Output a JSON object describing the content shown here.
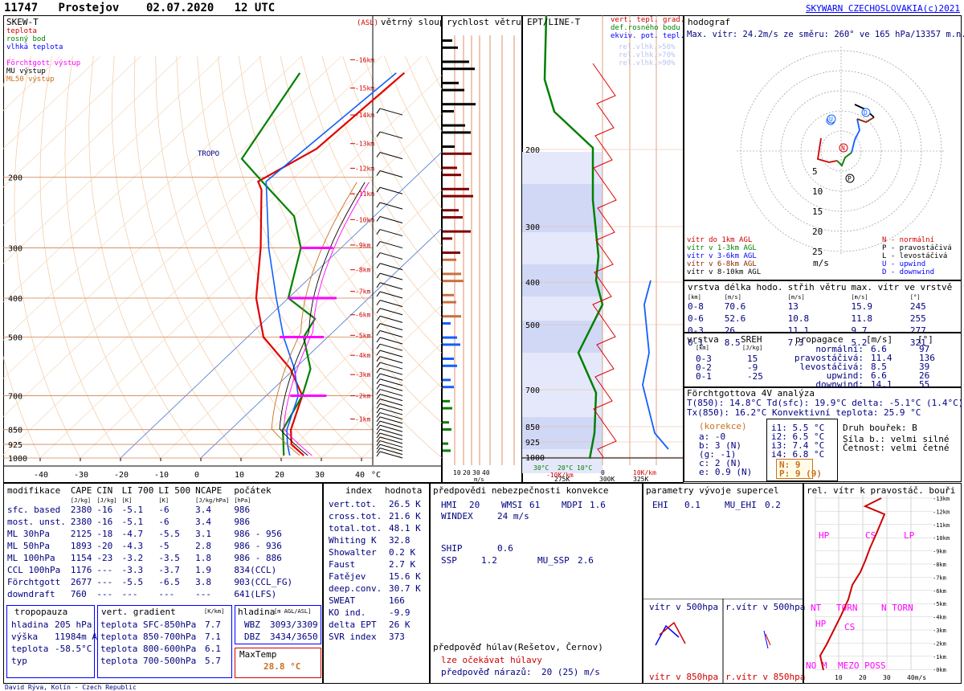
{
  "header": {
    "station": "11747",
    "place": "Prostejov",
    "date": "02.07.2020",
    "time": "12 UTC",
    "copyright": "SKYWARN CZECHOSLOVAKIA(c)2021",
    "footer": "David Rýva, Kolín - Czech Republic"
  },
  "skewt": {
    "title": "SKEW-T",
    "legend": [
      "teplota",
      "rosný bod",
      "vlhká teplota",
      "Förchtgott výstup",
      "MU výstup",
      "ML50 výstup"
    ],
    "legend_colors": [
      "#d00000",
      "#008000",
      "#0000ff",
      "#ff00ff",
      "#000000",
      "#c87020"
    ],
    "asl": "(ASL)",
    "tropo_label": "TROPO",
    "x_ticks": [
      "-40",
      "-30",
      "-20",
      "-10",
      "0",
      "10",
      "20",
      "30",
      "40"
    ],
    "x_unit": "°C",
    "p_labels": [
      "200",
      "300",
      "400",
      "500",
      "700",
      "850",
      "925",
      "1000"
    ],
    "km_labels": [
      "-16km",
      "-15km",
      "-14km",
      "-13km",
      "-12km",
      "-11km",
      "-10km",
      "-9km",
      "-8km",
      "-7km",
      "-6km",
      "-5km",
      "-4km",
      "-3km",
      "-2km",
      "-1km"
    ]
  },
  "wind_column": {
    "title": "větrný sloup"
  },
  "speed_column": {
    "title": "rychlost větru",
    "ticks": [
      "10",
      "20",
      "30",
      "40"
    ],
    "unit": "m/s"
  },
  "ept_column": {
    "title": "EPT/LINE-T",
    "legend": [
      "vert. tepl. grad.",
      "def.rosného bodu",
      "ekviv. pot. tepl."
    ],
    "legend_colors": [
      "#d00000",
      "#008000",
      "#0000ff"
    ],
    "rh_legend": [
      "rel.vlhk.>50%",
      "rel.vlhk.>70%",
      "rel.vlhk.>90%"
    ],
    "bottom_ticks": [
      "30°C",
      "20°C",
      "10°C",
      "0",
      "-10K/km",
      "275K",
      "300K",
      "10K/km",
      "325K"
    ]
  },
  "hodograph": {
    "title": "hodograf",
    "max_wind": "Max. vítr: 24.2m/s ze směru: 260° ve 165 hPa/13357 m.n.m.",
    "rings": [
      "5",
      "10",
      "15",
      "20",
      "25"
    ],
    "unit": "m/s",
    "legend_left": [
      "vítr do 1km AGL",
      "vítr v 1-3km AGL",
      "vítr v 3-6km AGL",
      "vítr v 6-8km AGL",
      "vítr v 8-10km AGL"
    ],
    "legend_left_colors": [
      "#d00000",
      "#008000",
      "#0000ff",
      "#8b2500",
      "#000000"
    ],
    "legend_right": [
      "N - normální",
      "P - pravostáčivá",
      "L - levostáčivá",
      "U - upwind",
      "D - downwind"
    ]
  },
  "layers": {
    "headers": [
      "vrstva",
      "délka hodo.",
      "střih větru",
      "max. vítr ve vrstvě"
    ],
    "units": [
      "[km]",
      "[m/s]",
      "[m/s]",
      "[m/s]",
      "[°]"
    ],
    "rows": [
      [
        "0-8",
        "70.6",
        "13",
        "15.9",
        "245"
      ],
      [
        "0-6",
        "52.6",
        "10.8",
        "11.8",
        "255"
      ],
      [
        "0-3",
        "26",
        "11.1",
        "9.7",
        "277"
      ],
      [
        "0-1",
        "8.5",
        "7.3",
        "5.2",
        "321"
      ]
    ]
  },
  "sreh": {
    "headers": [
      "vrstva",
      "SREH",
      "propagace",
      "[m/s]",
      "[°]"
    ],
    "units": [
      "[km]",
      "[J/kg]"
    ],
    "rows": [
      [
        "0-3",
        "15"
      ],
      [
        "0-2",
        "-9"
      ],
      [
        "0-1",
        "-25"
      ]
    ],
    "prop": [
      [
        "normální:",
        "6.6",
        "97"
      ],
      [
        "pravostáčivá:",
        "11.4",
        "136"
      ],
      [
        "levostáčivá:",
        "8.5",
        "39"
      ],
      [
        "upwind:",
        "6.6",
        "26"
      ],
      [
        "downwind:",
        "14.1",
        "55"
      ]
    ]
  },
  "forchtgott": {
    "title": "Förchtgottova 4V analýza",
    "line1": "T(850): 14.8°C  Td(sfc): 19.9°C  delta: -5.1°C (1.4°C)",
    "line2": "Tx(850): 16.2°C   Konvektivní teplota: 25.9 °C",
    "korekce": "(korekce)",
    "abc": [
      "a: -0",
      "b: 3 (N)",
      "(g: -1)",
      "c: 2 (N)",
      "e: 0.9 (N)"
    ],
    "i": [
      "i1: 5.5 °C",
      "i2: 6.5 °C",
      "i3: 7.4 °C",
      "i4: 6.8 °C"
    ],
    "np": [
      "N: 9",
      "P: 9 (9)"
    ],
    "storm": [
      "Druh bouřek: B",
      "Síla b.: velmi silné",
      "Četnost: velmi četné"
    ]
  },
  "modification": {
    "headers": [
      "modifikace",
      "CAPE",
      "CIN",
      "LI 700",
      "LI 500",
      "NCAPE",
      "počátek"
    ],
    "units": [
      "",
      "[J/kg]",
      "[J/kg]",
      "[K]",
      "[K]",
      "[J/kg/hPa]",
      "[hPa]"
    ],
    "rows": [
      [
        "sfc. based",
        "2380",
        "-16",
        "-5.1",
        "-6",
        "3.4",
        "986"
      ],
      [
        "most. unst.",
        "2380",
        "-16",
        "-5.1",
        "-6",
        "3.4",
        "986"
      ],
      [
        "ML 30hPa",
        "2125",
        "-18",
        "-4.7",
        "-5.5",
        "3.1",
        "986 - 956"
      ],
      [
        "ML 50hPa",
        "1893",
        "-20",
        "-4.3",
        "-5",
        "2.8",
        "986 - 936"
      ],
      [
        "ML 100hPa",
        "1154",
        "-23",
        "-3.2",
        "-3.5",
        "1.8",
        "986 - 886"
      ],
      [
        "CCL 100hPa",
        "1176",
        "---",
        "-3.3",
        "-3.7",
        "1.9",
        "834(CCL)"
      ],
      [
        "Förchtgott",
        "2677",
        "---",
        "-5.5",
        "-6.5",
        "3.8",
        "903(CCL_FG)"
      ],
      [
        "downdraft",
        "760",
        "---",
        "---",
        "---",
        "---",
        "641(LFS)"
      ]
    ]
  },
  "tropopause": {
    "title": "tropopauza",
    "rows": [
      [
        "hladina",
        "205 hPa"
      ],
      [
        "výška",
        "11984m ASL"
      ],
      [
        "teplota",
        "-58.5°C"
      ],
      [
        "typ",
        ""
      ]
    ]
  },
  "gradient": {
    "title": "vert. gradient",
    "unit": "[K/km]",
    "rows": [
      [
        "teplota SFC-850hPa",
        "7.7"
      ],
      [
        "teplota 850-700hPa",
        "7.1"
      ],
      [
        "teplota 800-600hPa",
        "6.1"
      ],
      [
        "teplota 700-500hPa",
        "5.7"
      ]
    ]
  },
  "level": {
    "title": "hladina",
    "unit": "[m AGL/ASL]",
    "rows": [
      [
        "WBZ",
        "3093/3309"
      ],
      [
        "DBZ",
        "3434/3650"
      ]
    ]
  },
  "maxtemp": {
    "title": "MaxTemp",
    "value": "28.8 °C"
  },
  "indices": {
    "headers": [
      "index",
      "hodnota"
    ],
    "rows": [
      [
        "vert.tot.",
        "26.5 K"
      ],
      [
        "cross.tot.",
        "21.6 K"
      ],
      [
        "total.tot.",
        "48.1 K"
      ],
      [
        "Whiting K",
        "32.8"
      ],
      [
        "Showalter",
        "0.2 K"
      ],
      [
        "Faust",
        "2.7 K"
      ],
      [
        "Fatějev",
        "15.6 K"
      ],
      [
        "deep.conv.",
        "30.7 K"
      ],
      [
        "SWEAT",
        "166"
      ],
      [
        "KO ind.",
        "-9.9"
      ],
      [
        "delta EPT",
        "26 K"
      ],
      [
        "SVR index",
        "373"
      ]
    ]
  },
  "forecast": {
    "title": "předpovědi nebezpečnosti konvekce",
    "hmi": "HMI",
    "hmi_v": "20",
    "wmsi": "WMSI",
    "wmsi_v": "61",
    "mdpi": "MDPI",
    "mdpi_v": "1.6",
    "windex": "WINDEX",
    "windex_v": "24 m/s",
    "ship": "SHIP",
    "ship_v": "0.6",
    "ssp": "SSP",
    "ssp_v": "1.2",
    "mussp": "MU_SSP",
    "mussp_v": "2.6",
    "hail_title": "předpověď húlav(Rešetov, Černov)",
    "hail_line": "lze očekávat húlavy",
    "gust_label": "předpověď nárazů:",
    "gust_value": "20 (25) m/s"
  },
  "supercell": {
    "title": "parametry vývoje supercel",
    "ehi": "EHI",
    "ehi_v": "0.1",
    "muehi": "MU_EHI",
    "muehi_v": "0.2",
    "w500": "vítr v 500hpa",
    "rw500": "r.vítr v 500hpa",
    "w850": "vítr v 850hpa",
    "rw850": "r.vítr v 850hpa"
  },
  "relwind": {
    "title": "rel. vítr k pravostáč. bouři",
    "km": [
      "-13km",
      "-12km",
      "-11km",
      "-10km",
      "-9km",
      "-8km",
      "-7km",
      "-6km",
      "-5km",
      "-4km",
      "-3km",
      "-2km",
      "-1km",
      "-0km"
    ],
    "x_ticks": [
      "10",
      "20",
      "30",
      "40m/s"
    ],
    "labels": [
      "HP",
      "CS",
      "LP",
      "NT",
      "TORN",
      "N TORN",
      "HP",
      "CS",
      "NO M",
      "MEZO POSS"
    ]
  },
  "chart_data": {
    "type": "line",
    "title": "SKEW-T",
    "xlabel": "°C",
    "ylabel": "",
    "xlim": [
      -40,
      40
    ],
    "ylim": [
      1000,
      100
    ],
    "series": [
      {
        "name": "teplota",
        "x": [
          25,
          19,
          15,
          9,
          -1,
          -16,
          -28,
          -40,
          -55,
          -58,
          -52,
          -50
        ],
        "y": [
          986,
          925,
          850,
          700,
          600,
          500,
          400,
          300,
          215,
          205,
          170,
          110
        ]
      },
      {
        "name": "rosný bod",
        "x": [
          20,
          17,
          13,
          9,
          4,
          -6,
          -8,
          -20,
          -30,
          -40,
          -57,
          -68,
          -76
        ],
        "y": [
          986,
          925,
          850,
          700,
          600,
          500,
          450,
          400,
          300,
          250,
          205,
          180,
          110
        ]
      },
      {
        "name": "vlhká teplota",
        "x": [
          21.5,
          18,
          14,
          8,
          0,
          -11,
          -23,
          -38,
          -56,
          -52
        ],
        "y": [
          986,
          925,
          850,
          700,
          600,
          500,
          400,
          300,
          205,
          110
        ]
      }
    ]
  }
}
